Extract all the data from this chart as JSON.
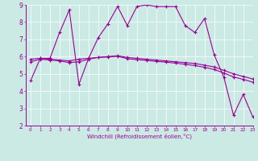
{
  "xlabel": "Windchill (Refroidissement éolien,°C)",
  "xlim": [
    -0.5,
    23
  ],
  "ylim": [
    2,
    9
  ],
  "yticks": [
    2,
    3,
    4,
    5,
    6,
    7,
    8,
    9
  ],
  "xticks": [
    0,
    1,
    2,
    3,
    4,
    5,
    6,
    7,
    8,
    9,
    10,
    11,
    12,
    13,
    14,
    15,
    16,
    17,
    18,
    19,
    20,
    21,
    22,
    23
  ],
  "bg_color": "#cceae4",
  "line_color": "#990099",
  "grid_color": "#ffffff",
  "series0": {
    "x": [
      0,
      1,
      2,
      3,
      4,
      5,
      6,
      7,
      8,
      9,
      10,
      11,
      12,
      13,
      14,
      15,
      16,
      17,
      18,
      19,
      20,
      21,
      22,
      23
    ],
    "y": [
      4.6,
      5.9,
      5.9,
      7.4,
      8.7,
      4.4,
      5.9,
      7.1,
      7.9,
      8.9,
      7.8,
      8.9,
      9.0,
      8.9,
      8.9,
      8.9,
      7.8,
      7.4,
      8.2,
      6.1,
      4.8,
      2.6,
      3.8,
      2.5
    ]
  },
  "series1": {
    "x": [
      0,
      1,
      2,
      3,
      4,
      5,
      6,
      7,
      8,
      9,
      10,
      11,
      12,
      13,
      14,
      15,
      16,
      17,
      18,
      19,
      20,
      21,
      22,
      23
    ],
    "y": [
      5.85,
      5.9,
      5.85,
      5.8,
      5.75,
      5.85,
      5.9,
      5.95,
      6.0,
      6.05,
      5.95,
      5.9,
      5.85,
      5.8,
      5.75,
      5.7,
      5.65,
      5.6,
      5.5,
      5.4,
      5.2,
      5.0,
      4.85,
      4.7
    ]
  },
  "series2": {
    "x": [
      0,
      1,
      2,
      3,
      4,
      5,
      6,
      7,
      8,
      9,
      10,
      11,
      12,
      13,
      14,
      15,
      16,
      17,
      18,
      19,
      20,
      21,
      22,
      23
    ],
    "y": [
      5.7,
      5.85,
      5.8,
      5.75,
      5.65,
      5.7,
      5.85,
      5.95,
      5.98,
      6.02,
      5.88,
      5.82,
      5.78,
      5.72,
      5.68,
      5.62,
      5.55,
      5.48,
      5.38,
      5.25,
      5.05,
      4.82,
      4.68,
      4.52
    ]
  }
}
